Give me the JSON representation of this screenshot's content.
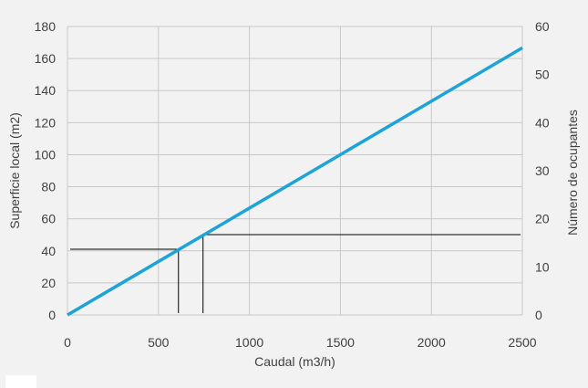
{
  "chart_data": {
    "type": "line",
    "xlabel": "Caudal (m3/h)",
    "ylabel": "Superficie local (m2)",
    "y2label": "Número de ocupantes",
    "xlim": [
      0,
      2500
    ],
    "ylim": [
      0,
      180
    ],
    "y2lim": [
      0,
      60
    ],
    "x_ticks": [
      0,
      500,
      1000,
      1500,
      2000,
      2500
    ],
    "y_ticks": [
      0,
      20,
      40,
      60,
      80,
      100,
      120,
      140,
      160,
      180
    ],
    "y2_ticks": [
      0,
      10,
      20,
      30,
      40,
      50,
      60
    ],
    "grid": true,
    "series": [
      {
        "x": [
          0,
          2500
        ],
        "y": [
          0,
          166.7
        ],
        "color": "#1ea3d8"
      }
    ],
    "reference_lines": [
      {
        "axis": "left",
        "x": 610,
        "y": 41
      },
      {
        "axis": "right",
        "x": 745,
        "y2": 16.7
      }
    ]
  }
}
